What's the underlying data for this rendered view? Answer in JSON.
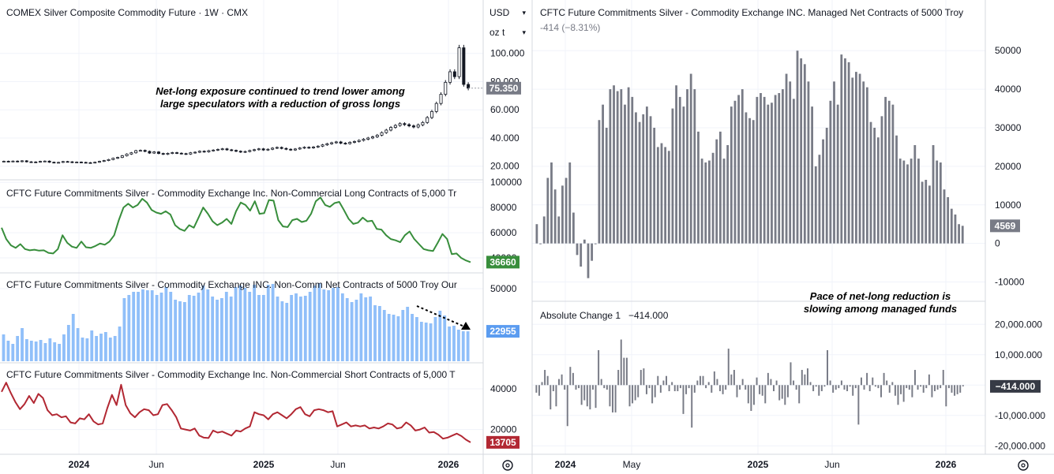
{
  "left": {
    "price_panel": {
      "title": "COMEX Silver Composite Commodity Future · 1W · CMX",
      "annotation": [
        "Net-long exposure continued to trend lower among",
        "large speculators with a reduction of gross longs"
      ],
      "axis_ticks": [
        "100.000",
        "80.000",
        "60.000",
        "40.000",
        "20.000"
      ],
      "last_value": "75.350"
    },
    "long_panel": {
      "title": "CFTC Future Commitments Silver - Commodity Exchange Inc. Non-Commercial Long Contracts of 5,000 Tr",
      "axis_ticks": [
        "100000",
        "80000",
        "60000",
        "40000"
      ],
      "last_value": "36660",
      "color": "#388e3c"
    },
    "net_panel": {
      "title": "CFTC Future Commitments Silver - Commodity Exchange INC. Non-Comm Net Contracts of 5000 Troy Our",
      "axis_ticks": [
        "50000"
      ],
      "last_value": "22955",
      "color": "#90bff9"
    },
    "short_panel": {
      "title": "CFTC Future Commitments Silver - Commodity Exchange Inc. Non-Commercial Short Contracts of 5,000 T",
      "axis_ticks": [
        "40000",
        "20000"
      ],
      "last_value": "13705",
      "color": "#b22833"
    },
    "time_axis": [
      "2024",
      "Jun",
      "2025",
      "Jun",
      "2026"
    ]
  },
  "controls": {
    "currency": "USD",
    "unit": "oz t",
    "settings_icon": "gear-icon"
  },
  "right": {
    "managed_panel": {
      "title": "CFTC Future Commitments Silver - Commodity Exchange INC. Managed Net Contracts of 5000 Troy",
      "subtitle": "-414 (−8.31%)",
      "axis_ticks": [
        "50000",
        "40000",
        "30000",
        "20000",
        "10000",
        "0",
        "-10000"
      ],
      "last_value": "4569",
      "color": "#787b86"
    },
    "change_panel": {
      "title": "Absolute Change 1",
      "value": "−414.000",
      "annotation": [
        "Pace of net-long reduction is",
        "slowing among managed funds"
      ],
      "axis_ticks": [
        "20,000.000",
        "10,000.000",
        "-10,000.000",
        "-20,000.000"
      ],
      "last_value": "−414.000",
      "color": "#787b86"
    },
    "time_axis": [
      "2024",
      "May",
      "2025",
      "Jun",
      "2026"
    ]
  },
  "chart_data": [
    {
      "type": "candlestick",
      "title": "COMEX Silver Composite Commodity Future · 1W · CMX",
      "ylim": [
        12,
        120
      ],
      "values": [
        23.5,
        23.3,
        23.6,
        23.2,
        23.8,
        23.1,
        23.0,
        22.9,
        23.4,
        23.6,
        22.8,
        22.5,
        22.7,
        23.3,
        23.1,
        22.6,
        22.9,
        22.7,
        22.5,
        22.4,
        22.8,
        23.4,
        24.0,
        24.7,
        25.6,
        26.2,
        27.4,
        28.6,
        29.5,
        31.0,
        31.2,
        30.5,
        29.3,
        30.1,
        29.0,
        28.5,
        29.1,
        29.6,
        29.2,
        28.9,
        28.6,
        29.5,
        29.9,
        30.6,
        30.2,
        31.0,
        31.4,
        31.9,
        32.3,
        31.6,
        31.2,
        30.6,
        30.0,
        30.4,
        31.1,
        31.7,
        32.3,
        31.5,
        32.0,
        32.8,
        33.3,
        32.6,
        32.0,
        31.5,
        32.2,
        32.9,
        33.4,
        33.0,
        33.6,
        34.2,
        35.1,
        35.9,
        36.6,
        37.2,
        36.3,
        36.0,
        36.9,
        37.5,
        38.3,
        39.1,
        40.0,
        40.8,
        42.0,
        43.8,
        45.6,
        47.5,
        48.9,
        50.2,
        49.5,
        48.6,
        47.8,
        49.3,
        51.0,
        54.5,
        58.8,
        64.5,
        71.0,
        79.5,
        87.0,
        83.5,
        104.0,
        78.0,
        75.35
      ],
      "last": 75.35
    },
    {
      "type": "line",
      "title": "CFTC Future Commitments Silver - Commodity Exchange Inc. Non-Commercial Long Contracts of 5,000 Tr",
      "ylim": [
        30000,
        102000
      ],
      "values": [
        64000,
        55000,
        50000,
        48000,
        51000,
        47000,
        46000,
        46500,
        45800,
        46000,
        44000,
        43500,
        47000,
        58000,
        52000,
        49000,
        48000,
        53000,
        48500,
        48000,
        49500,
        51500,
        50500,
        53000,
        58000,
        70000,
        80000,
        83000,
        80000,
        82000,
        87000,
        84000,
        78000,
        76000,
        75000,
        77000,
        74500,
        66000,
        63000,
        61500,
        66000,
        64000,
        72000,
        80000,
        75000,
        69000,
        66000,
        68000,
        71000,
        67000,
        77000,
        84000,
        82000,
        77500,
        85000,
        75000,
        75500,
        86000,
        85500,
        70000,
        65000,
        64500,
        70000,
        71000,
        68500,
        69500,
        75000,
        85000,
        88000,
        82000,
        80500,
        83500,
        84500,
        78000,
        71000,
        67000,
        68000,
        72000,
        69000,
        69500,
        63000,
        62500,
        58000,
        55000,
        54000,
        52500,
        58000,
        61000,
        55000,
        51000,
        47000,
        46000,
        45500,
        52000,
        59000,
        55000,
        43000,
        43500,
        40000,
        38000,
        36660
      ],
      "last": 36660
    },
    {
      "type": "bar",
      "title": "CFTC Future Commitments Silver - Commodity Exchange INC. Non-Comm Net Contracts of 5000 Troy Our",
      "ylim": [
        4000,
        60000
      ],
      "values": [
        21000,
        17000,
        15000,
        20000,
        25000,
        18000,
        17000,
        16500,
        17500,
        15500,
        18500,
        16000,
        15000,
        21000,
        27000,
        34000,
        25000,
        19000,
        18500,
        23500,
        20000,
        21500,
        22500,
        19000,
        20000,
        26000,
        44000,
        46000,
        48000,
        48000,
        49500,
        49000,
        49000,
        46000,
        47500,
        51000,
        48000,
        43000,
        42000,
        41500,
        46000,
        45500,
        47500,
        52000,
        49500,
        45000,
        43000,
        44000,
        48000,
        45000,
        51000,
        52000,
        50500,
        48000,
        52500,
        46000,
        46000,
        52500,
        53000,
        45000,
        42000,
        41000,
        46000,
        47000,
        45000,
        45500,
        48000,
        52000,
        53500,
        49500,
        49000,
        50500,
        51000,
        47000,
        44000,
        41500,
        43000,
        47000,
        44500,
        45000,
        39500,
        39000,
        36500,
        34000,
        33500,
        32500,
        36500,
        38500,
        34000,
        32000,
        29000,
        28500,
        28000,
        32000,
        36000,
        33000,
        26000,
        26500,
        24000,
        23000,
        22955
      ],
      "last": 22955
    },
    {
      "type": "line",
      "title": "CFTC Future Commitments Silver - Commodity Exchange Inc. Non-Commercial Short Contracts of 5,000 T",
      "ylim": [
        9000,
        52000
      ],
      "values": [
        38500,
        43000,
        38000,
        33500,
        30000,
        32500,
        36500,
        33000,
        37500,
        35500,
        29500,
        27000,
        27500,
        26000,
        26500,
        23500,
        23000,
        25500,
        25000,
        27500,
        24000,
        22500,
        23000,
        30500,
        37000,
        32000,
        42000,
        32000,
        28000,
        26000,
        28500,
        30000,
        29500,
        27000,
        27500,
        32000,
        32500,
        29500,
        26000,
        20500,
        20000,
        19500,
        20500,
        17000,
        16000,
        15800,
        19500,
        18500,
        19000,
        18000,
        17000,
        19500,
        19000,
        20500,
        21500,
        28500,
        27500,
        27000,
        25000,
        27500,
        28500,
        27000,
        25500,
        27500,
        30000,
        31000,
        27500,
        26500,
        29500,
        30000,
        29500,
        28500,
        29000,
        21500,
        22500,
        23500,
        21500,
        22000,
        21500,
        22000,
        20500,
        21000,
        20500,
        21500,
        23000,
        22500,
        20500,
        21000,
        23500,
        22000,
        19500,
        20000,
        21000,
        18500,
        18800,
        17500,
        15500,
        16000,
        17000,
        18000,
        16800,
        15000,
        13705
      ],
      "last": 13705
    },
    {
      "type": "bar",
      "title": "CFTC Future Commitments Silver - Commodity Exchange INC. Managed Net Contracts of 5000 Troy",
      "ylim": [
        -15000,
        57000
      ],
      "values": [
        5000,
        0,
        7000,
        17000,
        21000,
        14000,
        7000,
        15000,
        17000,
        21000,
        8000,
        -3000,
        -6000,
        1000,
        -9000,
        -4500,
        0,
        32000,
        36000,
        30000,
        40000,
        41000,
        39500,
        40000,
        36000,
        40500,
        38000,
        34000,
        31500,
        33500,
        35500,
        33000,
        30000,
        25000,
        26000,
        25000,
        24000,
        35000,
        41000,
        38000,
        35500,
        40000,
        44000,
        40000,
        29000,
        22000,
        21000,
        21500,
        23500,
        27000,
        29000,
        22000,
        25500,
        35500,
        37000,
        38500,
        40000,
        34000,
        32500,
        32000,
        38000,
        39000,
        38000,
        36000,
        36500,
        38500,
        39000,
        40000,
        44000,
        42000,
        37500,
        50000,
        48000,
        46500,
        42000,
        35500,
        20000,
        23000,
        27000,
        30000,
        37000,
        42000,
        36000,
        49000,
        48000,
        47000,
        43000,
        44500,
        44000,
        42000,
        40500,
        31500,
        30000,
        27500,
        33000,
        38000,
        37000,
        36000,
        28000,
        22000,
        21500,
        20500,
        22000,
        25500,
        22000,
        16000,
        16500,
        15000,
        25500,
        21500,
        21000,
        14000,
        12000,
        9000,
        7500,
        5000,
        4569
      ],
      "last": 4569
    },
    {
      "type": "bar",
      "title": "Absolute Change 1",
      "ylim": [
        -22000,
        25000
      ],
      "values": [
        -2500,
        -3500,
        1000,
        5000,
        3000,
        -8000,
        -2000,
        -7000,
        2000,
        3500,
        -1500,
        -13500,
        6000,
        4000,
        -1500,
        -1000,
        -6500,
        -5000,
        -7000,
        -8000,
        -1500,
        -7500,
        11500,
        2000,
        -1000,
        -1500,
        -7000,
        -9000,
        -9000,
        5000,
        15000,
        9000,
        9000,
        -7000,
        -6000,
        -5000,
        -4000,
        5000,
        5500,
        -3000,
        -1000,
        -6000,
        -4000,
        3000,
        -2500,
        1500,
        3000,
        -2000,
        1000,
        -2000,
        -2000,
        -1000,
        -9500,
        -3000,
        -1000,
        -14000,
        -2500,
        1500,
        3000,
        3000,
        -1000,
        1000,
        -2500,
        4500,
        2000,
        -2000,
        -3000,
        -1500,
        12000,
        3500,
        5000,
        -4000,
        -1500,
        2000,
        -1500,
        -6000,
        -8500,
        -6500,
        2500,
        -3000,
        -3500,
        -6000,
        4000,
        2000,
        -2000,
        1500,
        -5000,
        -4500,
        -6500,
        -4000,
        7500,
        1500,
        -1500,
        -6000,
        5000,
        3500,
        5500,
        1000,
        -2000,
        -500,
        -3500,
        -2000,
        -500,
        11500,
        1500,
        -2500,
        -1500,
        -1000,
        1500,
        -1500,
        -2000,
        -500,
        -3500,
        -1000,
        -13000,
        2500,
        -1500,
        4000,
        -2000,
        2500,
        -500,
        -1000,
        -4000,
        4000,
        1500,
        -2500,
        1000,
        -3500,
        -6500,
        -3000,
        -5500,
        -1000,
        -1500,
        -4000,
        5000,
        -1500,
        -500,
        -2500,
        -1000,
        3500,
        -4000,
        -2000,
        -1500,
        -1000,
        5000,
        -7000,
        -1000,
        -2500,
        -3500,
        -3000,
        -2500,
        -414
      ],
      "last": -414
    }
  ]
}
